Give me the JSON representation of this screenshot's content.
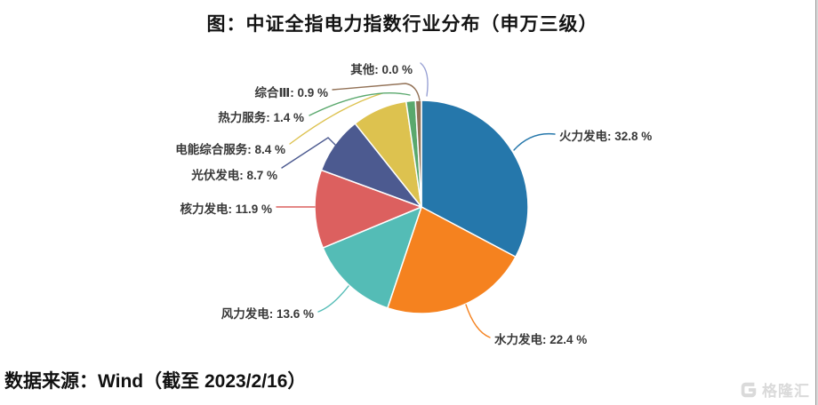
{
  "title": "图：中证全指电力指数行业分布（申万三级）",
  "source": {
    "prefix": "数据来源：",
    "rest": "Wind（截至 2023/2/16）"
  },
  "watermark": {
    "brand": "格隆汇"
  },
  "chart_data": {
    "type": "pie",
    "title": "图：中证全指电力指数行业分布（申万三级）",
    "label_format": "{name}: {value} %",
    "start_angle_deg": 90,
    "direction": "clockwise",
    "legend_position": "none",
    "label_text_color": "#383838",
    "series": [
      {
        "name": "火力发电",
        "value": 32.8,
        "color": "#2577ab"
      },
      {
        "name": "水力发电",
        "value": 22.4,
        "color": "#f5821f"
      },
      {
        "name": "风力发电",
        "value": 13.6,
        "color": "#54bcb6"
      },
      {
        "name": "核力发电",
        "value": 11.9,
        "color": "#dc605f"
      },
      {
        "name": "光伏发电",
        "value": 8.7,
        "color": "#4c5a90"
      },
      {
        "name": "电能综合服务",
        "value": 8.4,
        "color": "#ddc24f"
      },
      {
        "name": "热力服务",
        "value": 1.4,
        "color": "#5aa86d"
      },
      {
        "name": "综合Ⅲ",
        "value": 0.9,
        "color": "#937257"
      },
      {
        "name": "其他",
        "value": 0.0,
        "color": "#98a1d4"
      }
    ]
  }
}
